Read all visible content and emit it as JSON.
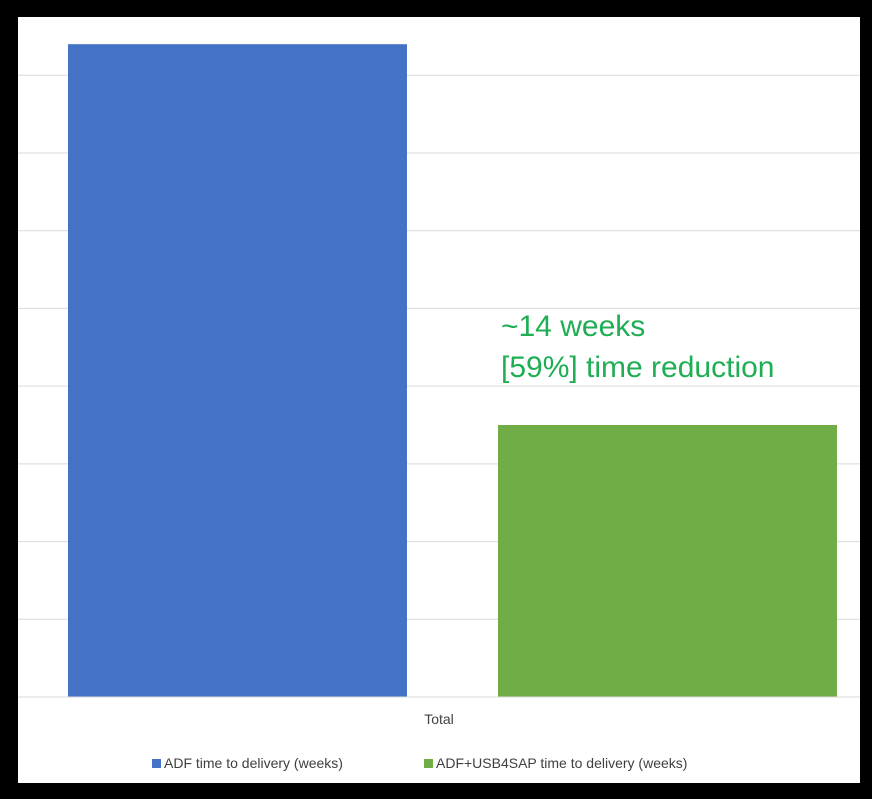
{
  "chart_data": {
    "type": "bar",
    "categories": [
      "Total"
    ],
    "series": [
      {
        "name": "ADF time to delivery (weeks)",
        "values": [
          24
        ],
        "color": "#4472c4"
      },
      {
        "name": "ADF+USB4SAP time to delivery (weeks)",
        "values": [
          10
        ],
        "color": "#70ad47"
      }
    ],
    "ylim": [
      0,
      25
    ],
    "gridlines": true,
    "y_tick_labels_shown": false,
    "legend_position": "bottom",
    "annotation": {
      "line1": "~14 weeks",
      "line2": "[59%] time reduction",
      "color": "#1fae54"
    }
  }
}
